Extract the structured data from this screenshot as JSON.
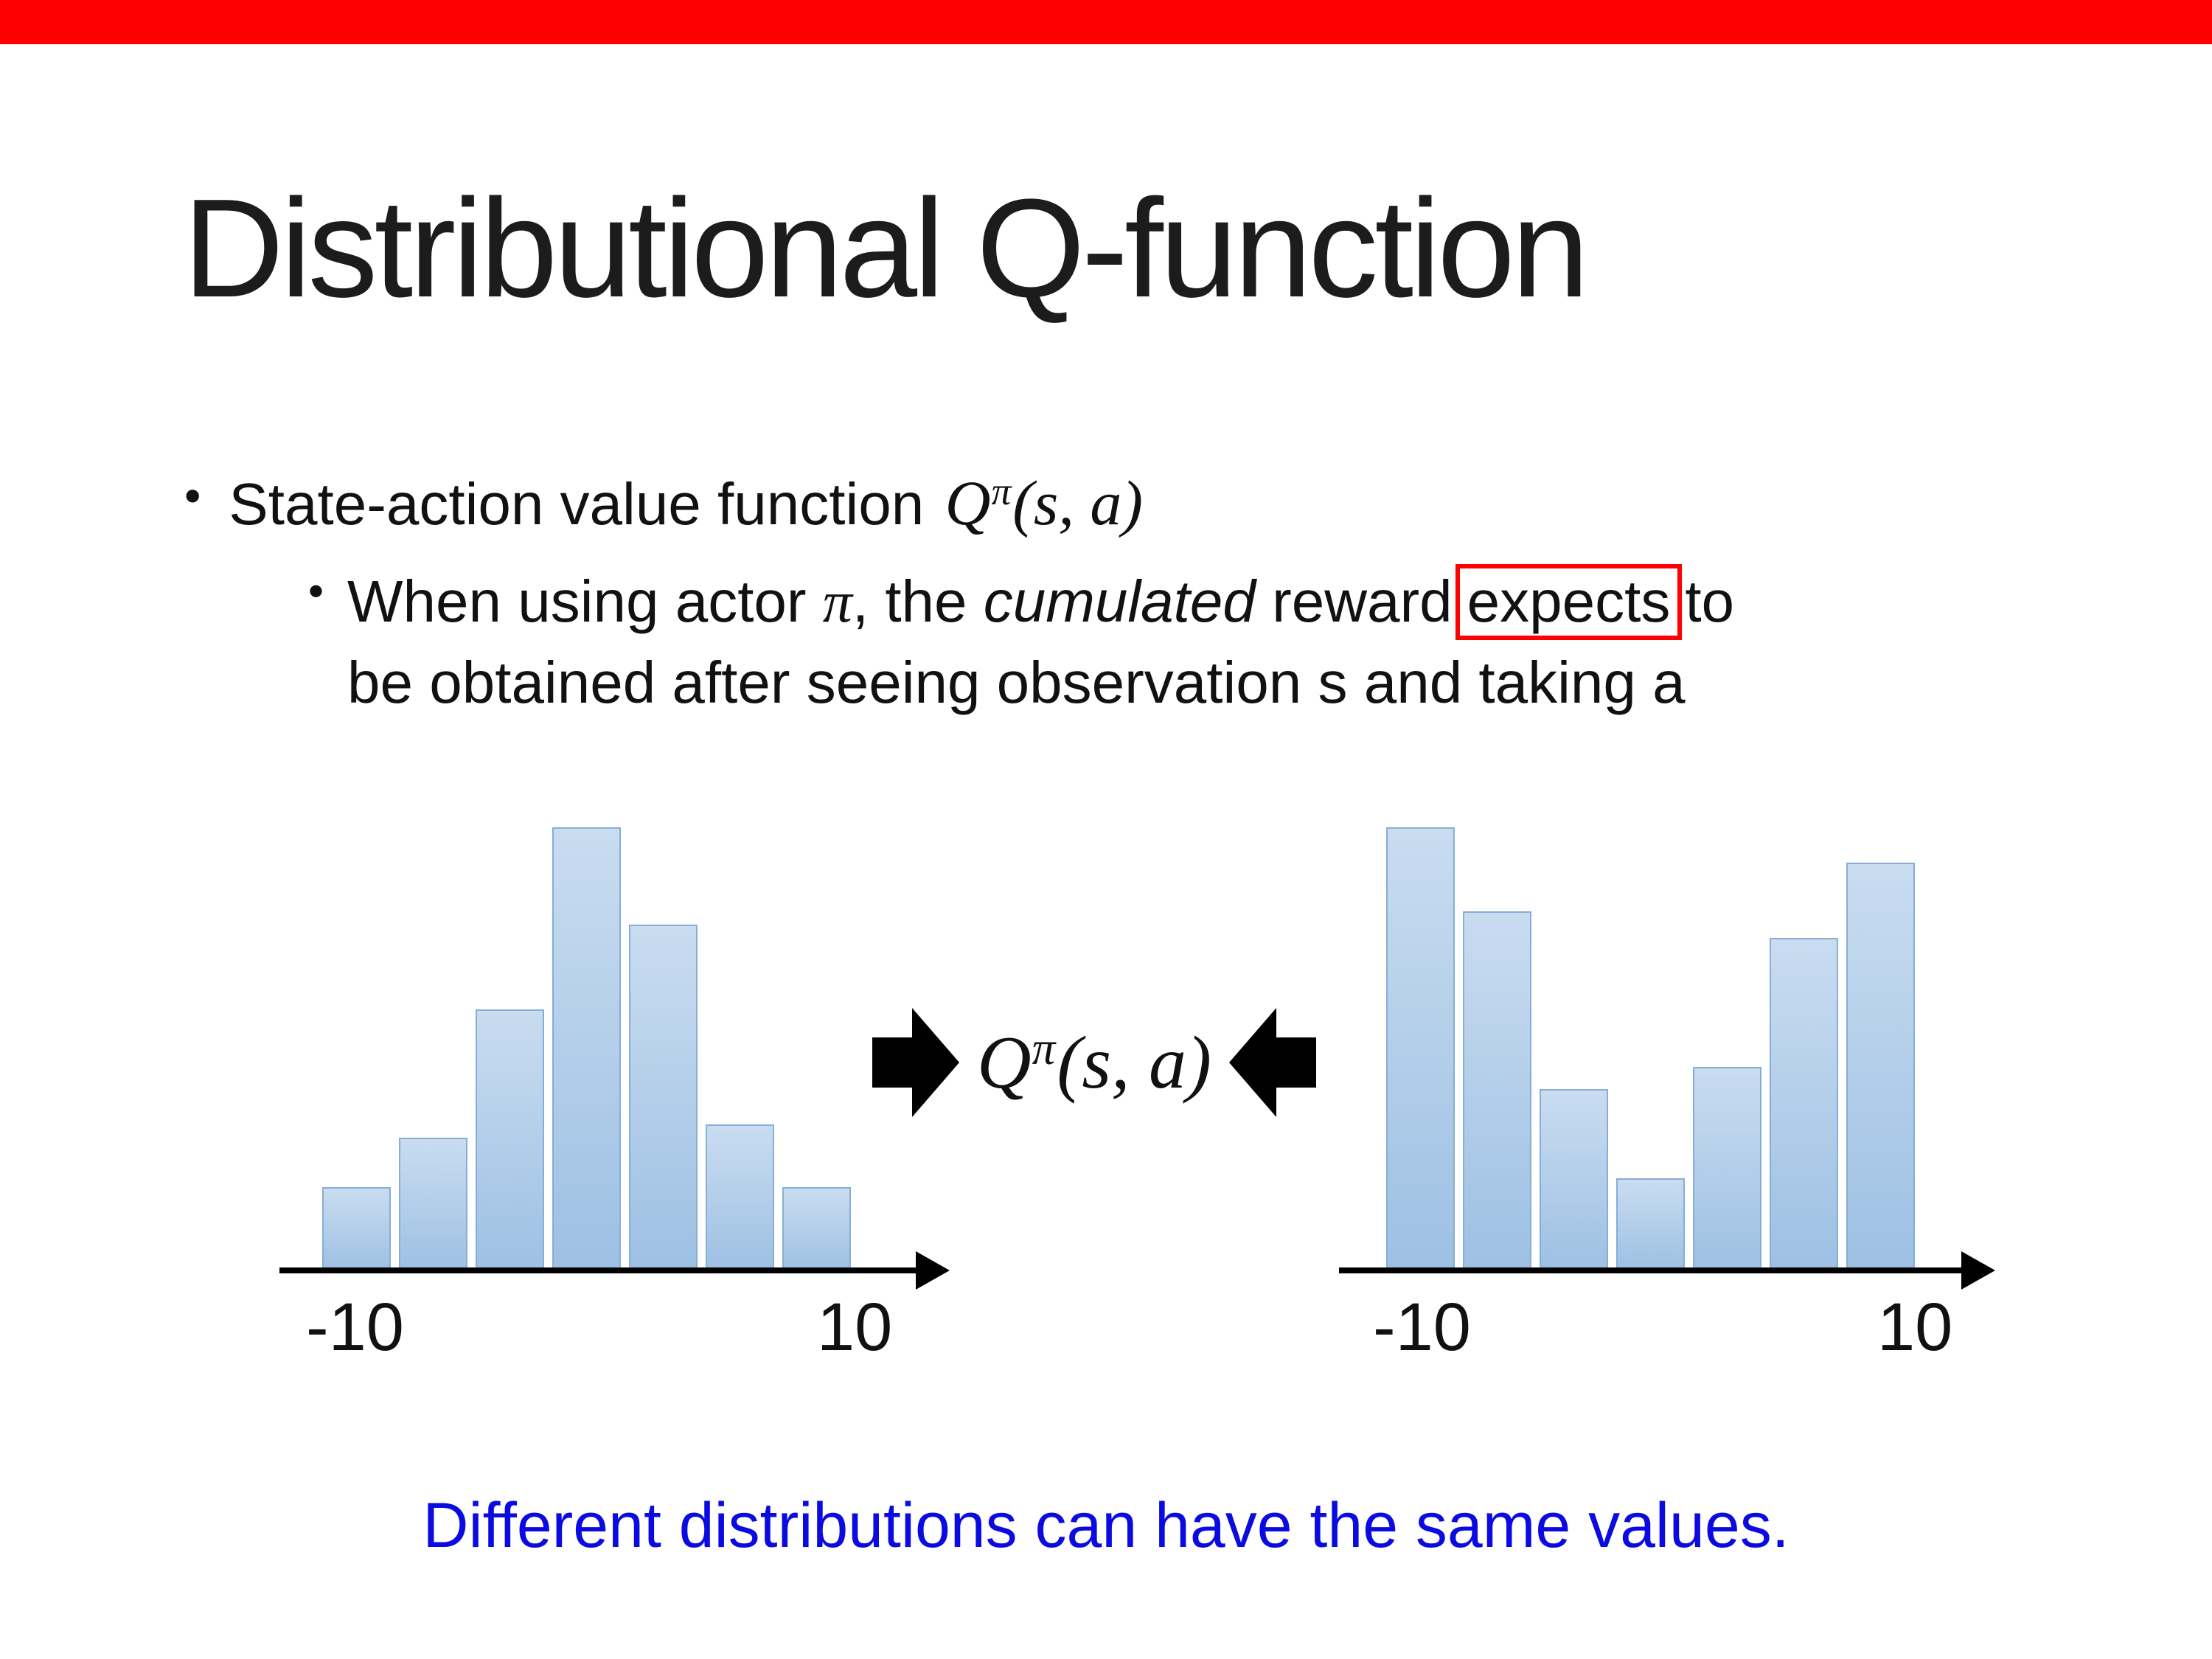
{
  "slide": {
    "banner_color": "#fe0000",
    "title": "Distributional Q-function",
    "caption": "Different distributions can have the same values.",
    "caption_color": "#0b0be1"
  },
  "bullets": {
    "glyph": "•",
    "level1": {
      "text": "State-action value function "
    },
    "level2": {
      "s1": "When using actor ",
      "pi": "π",
      "s2": ", the ",
      "cumulated": "cumulated",
      "s3": " reward",
      "expects": "expects",
      "s4": "to",
      "line2": "be obtained after seeing observation s and taking a",
      "box_color": "#fe0000"
    }
  },
  "math": {
    "base": "Q",
    "sup": "π",
    "args": "(s, a)"
  },
  "chart_data": [
    {
      "type": "bar",
      "name": "left-distribution",
      "description": "unimodal reward distribution histogram",
      "values": [
        0.19,
        0.3,
        0.59,
        1.0,
        0.78,
        0.33,
        0.19
      ],
      "x_range": [
        -10,
        10
      ],
      "x_tick_labels": [
        "-10",
        "10"
      ],
      "grid": false,
      "legend": false,
      "bar_color_top": "#c9dcf0",
      "bar_color_bottom": "#9dc0e3",
      "bar_border": "#86aed6"
    },
    {
      "type": "bar",
      "name": "right-distribution",
      "description": "bimodal reward distribution histogram",
      "values": [
        1.0,
        0.81,
        0.41,
        0.21,
        0.46,
        0.75,
        0.92
      ],
      "x_range": [
        -10,
        10
      ],
      "x_tick_labels": [
        "-10",
        "10"
      ],
      "grid": false,
      "legend": false,
      "bar_color_top": "#c9dcf0",
      "bar_color_bottom": "#9dc0e3",
      "bar_border": "#86aed6"
    }
  ]
}
